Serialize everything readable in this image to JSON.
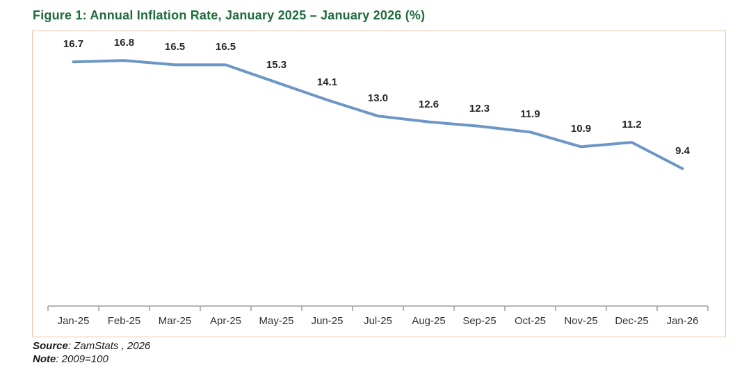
{
  "title": "Figure 1: Annual Inflation Rate, January 2025 – January 2026 (%)",
  "chart_data": {
    "type": "line",
    "title": "Figure 1: Annual Inflation Rate, January 2025 – January 2026 (%)",
    "categories": [
      "Jan-25",
      "Feb-25",
      "Mar-25",
      "Apr-25",
      "May-25",
      "Jun-25",
      "Jul-25",
      "Aug-25",
      "Sep-25",
      "Oct-25",
      "Nov-25",
      "Dec-25",
      "Jan-26"
    ],
    "values": [
      16.7,
      16.8,
      16.5,
      16.5,
      15.3,
      14.1,
      13.0,
      12.6,
      12.3,
      11.9,
      10.9,
      11.2,
      9.4
    ],
    "xlabel": "",
    "ylabel": "",
    "ylim": [
      0,
      18.8
    ],
    "grid": false,
    "legend": "none",
    "data_labels": "above",
    "label_decimals": 1
  },
  "footer": {
    "source_label": "Source",
    "source_text": ": ZamStats , 2026",
    "note_label": "Note",
    "note_text": ": 2009=100"
  },
  "colors": {
    "title_green": "#1F6B3C",
    "frame_border": "#F2C5A2",
    "line_blue": "#6D96C8",
    "axis_gray": "#9E9E9E",
    "data_label_text": "#262626",
    "x_label_text": "#333333"
  }
}
